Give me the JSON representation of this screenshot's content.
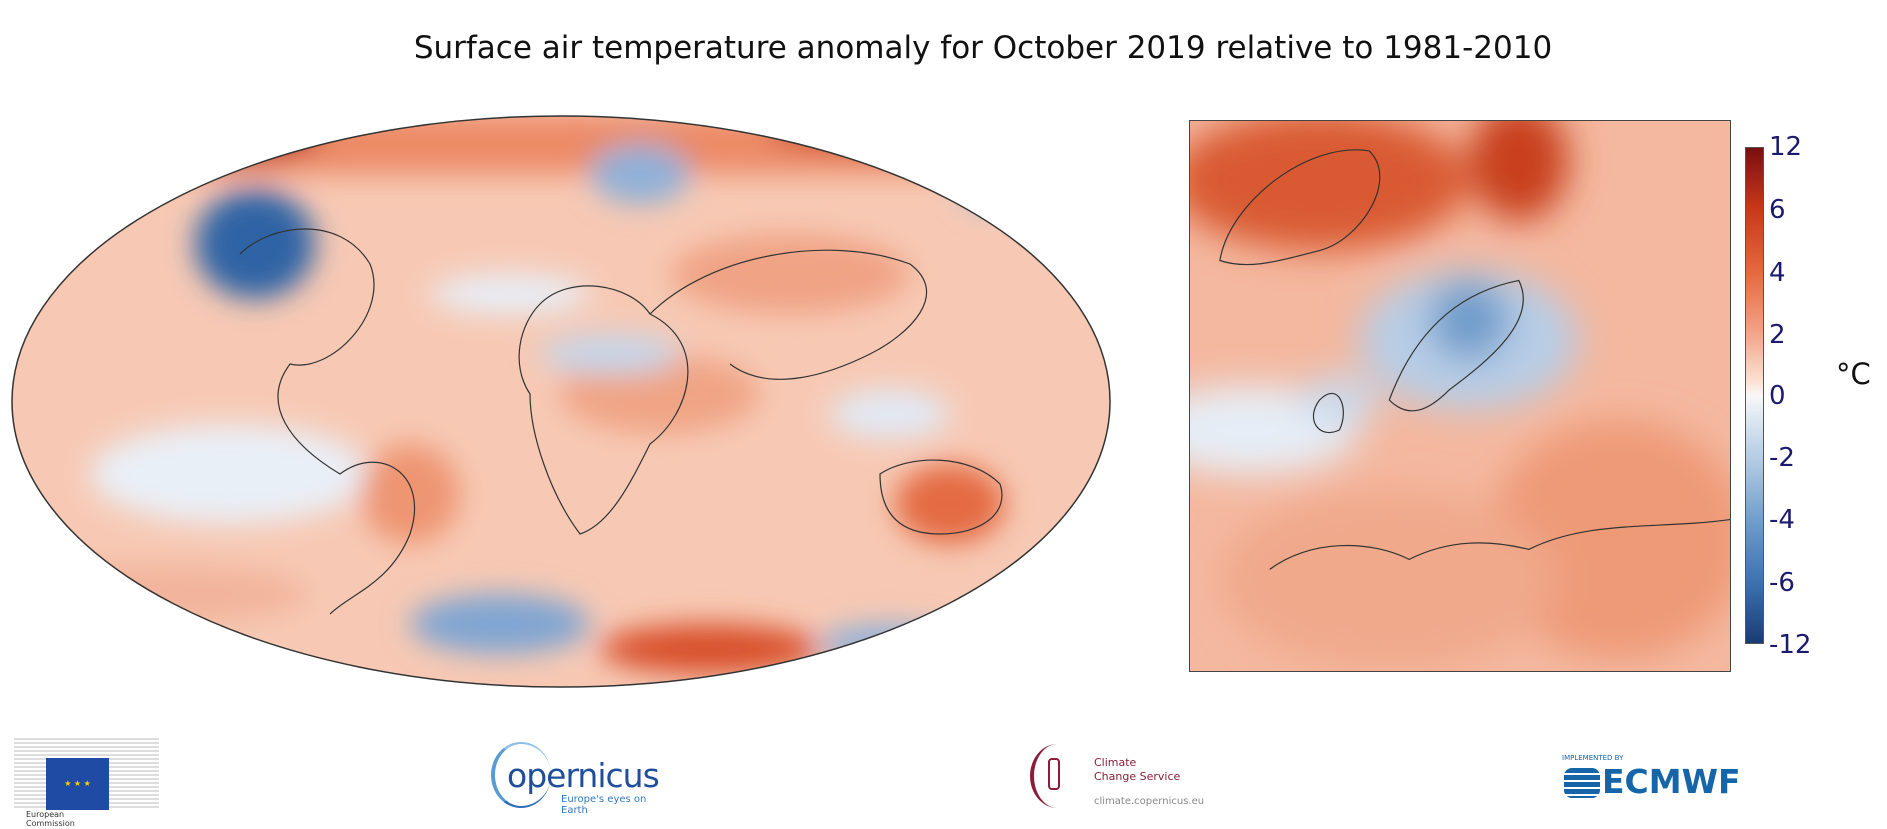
{
  "title": "Surface air temperature anomaly for October 2019 relative to 1981-2010",
  "colorbar": {
    "unit": "°C",
    "ticks": [
      "12",
      "6",
      "4",
      "2",
      "0",
      "-2",
      "-4",
      "-6",
      "-12"
    ],
    "colors": {
      "max": "#7a0f0f",
      "zero": "#f8f8f8",
      "min": "#173d72"
    }
  },
  "logos": {
    "ec": {
      "line1": "European",
      "line2": "Commission"
    },
    "copernicus": {
      "name": "opernicus",
      "tagline": "Europe's eyes on Earth"
    },
    "c3s": {
      "line1": "Climate",
      "line2": "Change Service",
      "url": "climate.copernicus.eu"
    },
    "ecmwf": {
      "pre": "IMPLEMENTED BY",
      "name": "ECMWF"
    }
  }
}
